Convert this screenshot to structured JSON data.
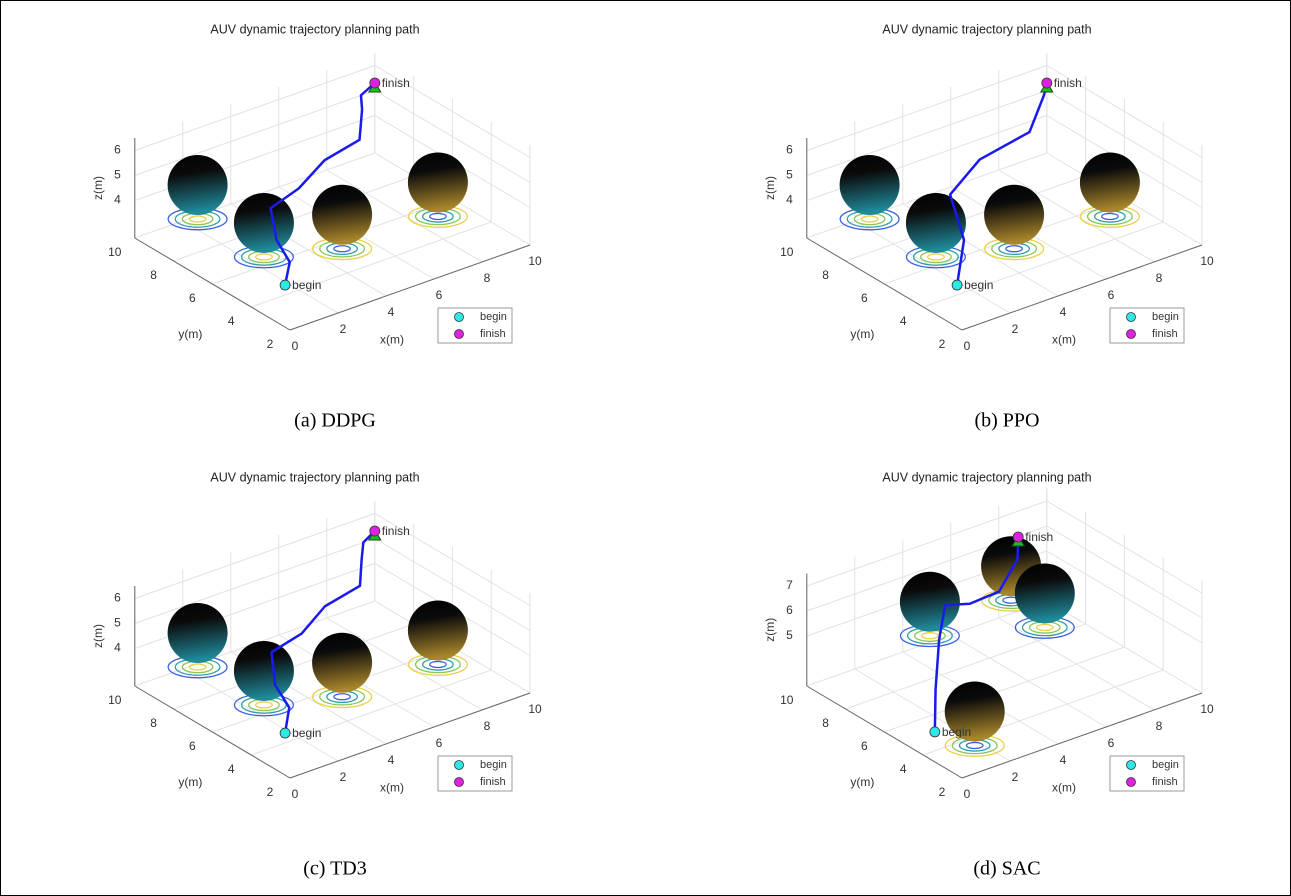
{
  "chart_data": [
    {
      "type": "line3d",
      "title": "AUV dynamic trajectory planning path",
      "caption": "(a) DDPG",
      "xlabel": "x(m)",
      "ylabel": "y(m)",
      "zlabel": "z(m)",
      "xlim": [
        0,
        10
      ],
      "ylim": [
        2,
        10
      ],
      "zlim": [
        2.5,
        6.5
      ],
      "xticks": [
        0,
        2,
        4,
        6,
        8,
        10
      ],
      "yticks": [
        2,
        4,
        6,
        8,
        10
      ],
      "zticks": [
        4,
        5,
        6
      ],
      "path": {
        "color": "#1a1aee",
        "x": [
          0.2,
          1.0,
          1.3,
          2.1,
          3.6,
          5.4,
          7.1,
          8.5,
          9.1,
          10
        ],
        "y": [
          2.5,
          3.25,
          4.3,
          5.6,
          6.0,
          6.9,
          7.2,
          8.8,
          9.6,
          10
        ],
        "z": [
          4.0,
          4.3,
          4.6,
          5.0,
          5.1,
          5.2,
          5.3,
          5.3,
          5.3,
          5.3
        ]
      },
      "obstacles": {
        "x": [
          1,
          1.5,
          5,
          9.8
        ],
        "y": [
          8,
          5.2,
          5.5,
          6.5
        ],
        "z": [
          5.2,
          4.8,
          3.8,
          3.0
        ],
        "r": [
          1.2,
          1.2,
          1.2,
          1.2
        ],
        "colors": [
          "#1f8a9a",
          "#1f8a9a",
          "#a8862a",
          "#a8862a"
        ]
      },
      "series": [
        {
          "name": "begin",
          "color": "#2ee8e8",
          "x": [
            0.2
          ],
          "y": [
            2.5
          ],
          "z": [
            4.0
          ]
        },
        {
          "name": "finish",
          "color": "#e020e0",
          "x": [
            10
          ],
          "y": [
            10
          ],
          "z": [
            5.3
          ]
        }
      ]
    },
    {
      "type": "line3d",
      "title": "AUV dynamic trajectory planning path",
      "caption": "(b) PPO",
      "xlabel": "x(m)",
      "ylabel": "y(m)",
      "zlabel": "z(m)",
      "xlim": [
        0,
        10
      ],
      "ylim": [
        2,
        10
      ],
      "zlim": [
        2.5,
        6.5
      ],
      "xticks": [
        0,
        2,
        4,
        6,
        8,
        10
      ],
      "yticks": [
        2,
        4,
        6,
        8,
        10
      ],
      "zticks": [
        4,
        5,
        6
      ],
      "path": {
        "color": "#1a1aee",
        "x": [
          0.2,
          1.7,
          2.9,
          5.1,
          7.5,
          9.4,
          10
        ],
        "y": [
          2.5,
          4.0,
          6.2,
          7.4,
          7.8,
          9.4,
          10
        ],
        "z": [
          4.0,
          4.6,
          5.0,
          5.1,
          5.2,
          5.3,
          5.3
        ]
      },
      "obstacles": {
        "x": [
          1,
          1.5,
          5,
          9.8
        ],
        "y": [
          8,
          5.2,
          5.5,
          6.5
        ],
        "z": [
          5.2,
          4.8,
          3.8,
          3.0
        ],
        "r": [
          1.2,
          1.2,
          1.2,
          1.2
        ],
        "colors": [
          "#1f8a9a",
          "#1f8a9a",
          "#a8862a",
          "#a8862a"
        ]
      },
      "series": [
        {
          "name": "begin",
          "color": "#2ee8e8",
          "x": [
            0.2
          ],
          "y": [
            2.5
          ],
          "z": [
            4.0
          ]
        },
        {
          "name": "finish",
          "color": "#e020e0",
          "x": [
            10
          ],
          "y": [
            10
          ],
          "z": [
            5.3
          ]
        }
      ]
    },
    {
      "type": "line3d",
      "title": "AUV dynamic trajectory planning path",
      "caption": "(c) TD3",
      "xlabel": "x(m)",
      "ylabel": "y(m)",
      "zlabel": "z(m)",
      "xlim": [
        0,
        10
      ],
      "ylim": [
        2,
        10
      ],
      "zlim": [
        2.5,
        6.5
      ],
      "xticks": [
        0,
        2,
        4,
        6,
        8,
        10
      ],
      "yticks": [
        2,
        4,
        6,
        8,
        10
      ],
      "zticks": [
        4,
        5,
        6
      ],
      "path": {
        "color": "#1a1aee",
        "x": [
          0.2,
          1.1,
          1.4,
          2.3,
          3.8,
          5.5,
          7.2,
          8.4,
          9.2,
          10
        ],
        "y": [
          2.5,
          3.4,
          4.5,
          5.8,
          6.1,
          7.0,
          7.3,
          8.7,
          9.6,
          10
        ],
        "z": [
          4.0,
          4.3,
          4.6,
          5.0,
          5.1,
          5.2,
          5.3,
          5.3,
          5.3,
          5.3
        ]
      },
      "obstacles": {
        "x": [
          1,
          1.5,
          5,
          9.8
        ],
        "y": [
          8,
          5.2,
          5.5,
          6.5
        ],
        "z": [
          5.2,
          4.8,
          3.8,
          3.0
        ],
        "r": [
          1.2,
          1.2,
          1.2,
          1.2
        ],
        "colors": [
          "#1f8a9a",
          "#1f8a9a",
          "#a8862a",
          "#a8862a"
        ]
      },
      "series": [
        {
          "name": "begin",
          "color": "#2ee8e8",
          "x": [
            0.2
          ],
          "y": [
            2.5
          ],
          "z": [
            4.0
          ]
        },
        {
          "name": "finish",
          "color": "#e020e0",
          "x": [
            10
          ],
          "y": [
            10
          ],
          "z": [
            5.3
          ]
        }
      ]
    },
    {
      "type": "line3d",
      "title": "AUV dynamic trajectory planning path",
      "caption": "(d) SAC",
      "xlabel": "x(m)",
      "ylabel": "y(m)",
      "zlabel": "z(m)",
      "xlim": [
        0,
        10
      ],
      "ylim": [
        2,
        10
      ],
      "zlim": [
        3,
        7.5
      ],
      "xticks": [
        0,
        2,
        4,
        6,
        8,
        10
      ],
      "yticks": [
        2,
        4,
        6,
        8,
        10
      ],
      "zticks": [
        5,
        6,
        7
      ],
      "path": {
        "color": "#1a1aee",
        "x": [
          0.0,
          1.0,
          2.2,
          3.1,
          3.8,
          5.1,
          7.0,
          8.0
        ],
        "y": [
          3.4,
          4.6,
          5.9,
          6.7,
          6.3,
          6.4,
          7.8,
          9.0
        ],
        "z": [
          4.2,
          5.0,
          6.0,
          6.7,
          6.7,
          6.7,
          6.7,
          6.7
        ]
      },
      "obstacles": {
        "x": [
          2.3,
          7.3,
          8.3,
          1.5
        ],
        "y": [
          6.5,
          8.5,
          8,
          3.2
        ],
        "z": [
          7.2,
          6.0,
          4.8,
          4.6
        ],
        "r": [
          1.2,
          1.2,
          1.2,
          1.2
        ],
        "colors": [
          "#1f8a9a",
          "#a8862a",
          "#1f8a9a",
          "#a8862a"
        ]
      },
      "series": [
        {
          "name": "begin",
          "color": "#2ee8e8",
          "x": [
            0.0
          ],
          "y": [
            3.4
          ],
          "z": [
            4.2
          ]
        },
        {
          "name": "finish",
          "color": "#e020e0",
          "x": [
            8.0
          ],
          "y": [
            9.0
          ],
          "z": [
            6.7
          ]
        }
      ]
    }
  ]
}
